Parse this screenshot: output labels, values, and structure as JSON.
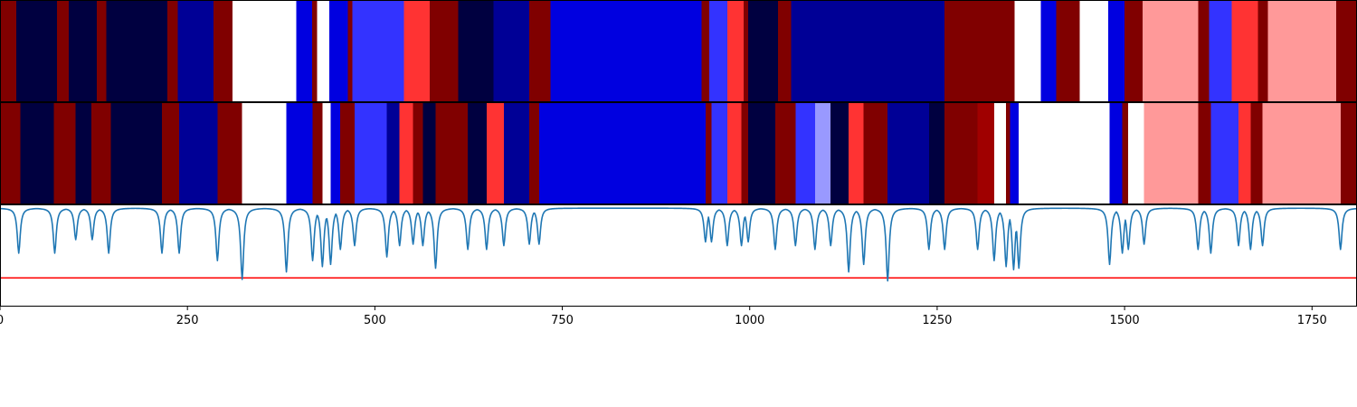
{
  "chart_data": [
    {
      "type": "heatmap",
      "panel": "top-band",
      "colormap": "seismic",
      "xlim": [
        0,
        1810
      ],
      "segments": [
        {
          "x0": 0,
          "x1": 22,
          "color": "#800000"
        },
        {
          "x0": 22,
          "x1": 76,
          "color": "#000040"
        },
        {
          "x0": 76,
          "x1": 92,
          "color": "#800000"
        },
        {
          "x0": 92,
          "x1": 129,
          "color": "#000040"
        },
        {
          "x0": 129,
          "x1": 142,
          "color": "#800000"
        },
        {
          "x0": 142,
          "x1": 223,
          "color": "#000040"
        },
        {
          "x0": 223,
          "x1": 237,
          "color": "#800000"
        },
        {
          "x0": 237,
          "x1": 285,
          "color": "#000096"
        },
        {
          "x0": 285,
          "x1": 310,
          "color": "#800000"
        },
        {
          "x0": 310,
          "x1": 395,
          "color": "#ffffff"
        },
        {
          "x0": 395,
          "x1": 416,
          "color": "#0000e0"
        },
        {
          "x0": 416,
          "x1": 423,
          "color": "#800000"
        },
        {
          "x0": 423,
          "x1": 439,
          "color": "#ffffff"
        },
        {
          "x0": 439,
          "x1": 464,
          "color": "#0000e0"
        },
        {
          "x0": 464,
          "x1": 470,
          "color": "#800000"
        },
        {
          "x0": 470,
          "x1": 539,
          "color": "#3333ff"
        },
        {
          "x0": 539,
          "x1": 573,
          "color": "#ff3333"
        },
        {
          "x0": 573,
          "x1": 611,
          "color": "#800000"
        },
        {
          "x0": 611,
          "x1": 658,
          "color": "#000040"
        },
        {
          "x0": 658,
          "x1": 706,
          "color": "#000096"
        },
        {
          "x0": 706,
          "x1": 734,
          "color": "#800000"
        },
        {
          "x0": 734,
          "x1": 936,
          "color": "#0000e0"
        },
        {
          "x0": 936,
          "x1": 946,
          "color": "#800000"
        },
        {
          "x0": 946,
          "x1": 970,
          "color": "#3333ff"
        },
        {
          "x0": 970,
          "x1": 992,
          "color": "#ff3333"
        },
        {
          "x0": 992,
          "x1": 998,
          "color": "#800000"
        },
        {
          "x0": 998,
          "x1": 1038,
          "color": "#000040"
        },
        {
          "x0": 1038,
          "x1": 1055,
          "color": "#800000"
        },
        {
          "x0": 1055,
          "x1": 1260,
          "color": "#000096"
        },
        {
          "x0": 1260,
          "x1": 1353,
          "color": "#800000"
        },
        {
          "x0": 1353,
          "x1": 1388,
          "color": "#ffffff"
        },
        {
          "x0": 1388,
          "x1": 1409,
          "color": "#0000e0"
        },
        {
          "x0": 1409,
          "x1": 1440,
          "color": "#800000"
        },
        {
          "x0": 1440,
          "x1": 1478,
          "color": "#ffffff"
        },
        {
          "x0": 1478,
          "x1": 1500,
          "color": "#0000e0"
        },
        {
          "x0": 1500,
          "x1": 1524,
          "color": "#800000"
        },
        {
          "x0": 1524,
          "x1": 1598,
          "color": "#ff9999"
        },
        {
          "x0": 1598,
          "x1": 1613,
          "color": "#800000"
        },
        {
          "x0": 1613,
          "x1": 1643,
          "color": "#3333ff"
        },
        {
          "x0": 1643,
          "x1": 1678,
          "color": "#ff3333"
        },
        {
          "x0": 1678,
          "x1": 1691,
          "color": "#800000"
        },
        {
          "x0": 1691,
          "x1": 1782,
          "color": "#ff9999"
        },
        {
          "x0": 1782,
          "x1": 1810,
          "color": "#800000"
        }
      ]
    },
    {
      "type": "heatmap",
      "panel": "middle-band",
      "colormap": "seismic",
      "xlim": [
        0,
        1810
      ],
      "segments": [
        {
          "x0": 0,
          "x1": 27,
          "color": "#800000"
        },
        {
          "x0": 27,
          "x1": 72,
          "color": "#000040"
        },
        {
          "x0": 72,
          "x1": 101,
          "color": "#800000"
        },
        {
          "x0": 101,
          "x1": 122,
          "color": "#000040"
        },
        {
          "x0": 122,
          "x1": 148,
          "color": "#800000"
        },
        {
          "x0": 148,
          "x1": 216,
          "color": "#000040"
        },
        {
          "x0": 216,
          "x1": 239,
          "color": "#800000"
        },
        {
          "x0": 239,
          "x1": 290,
          "color": "#000096"
        },
        {
          "x0": 290,
          "x1": 323,
          "color": "#800000"
        },
        {
          "x0": 323,
          "x1": 382,
          "color": "#ffffff"
        },
        {
          "x0": 382,
          "x1": 417,
          "color": "#0000e0"
        },
        {
          "x0": 417,
          "x1": 430,
          "color": "#800000"
        },
        {
          "x0": 430,
          "x1": 441,
          "color": "#ffffff"
        },
        {
          "x0": 441,
          "x1": 454,
          "color": "#0000e0"
        },
        {
          "x0": 454,
          "x1": 473,
          "color": "#800000"
        },
        {
          "x0": 473,
          "x1": 516,
          "color": "#3333ff"
        },
        {
          "x0": 516,
          "x1": 533,
          "color": "#000096"
        },
        {
          "x0": 533,
          "x1": 551,
          "color": "#ff3333"
        },
        {
          "x0": 551,
          "x1": 564,
          "color": "#800000"
        },
        {
          "x0": 564,
          "x1": 581,
          "color": "#000040"
        },
        {
          "x0": 581,
          "x1": 624,
          "color": "#800000"
        },
        {
          "x0": 624,
          "x1": 649,
          "color": "#000040"
        },
        {
          "x0": 649,
          "x1": 672,
          "color": "#ff3333"
        },
        {
          "x0": 672,
          "x1": 706,
          "color": "#000096"
        },
        {
          "x0": 706,
          "x1": 719,
          "color": "#800000"
        },
        {
          "x0": 719,
          "x1": 941,
          "color": "#0000e0"
        },
        {
          "x0": 941,
          "x1": 949,
          "color": "#800000"
        },
        {
          "x0": 949,
          "x1": 970,
          "color": "#3333ff"
        },
        {
          "x0": 970,
          "x1": 989,
          "color": "#ff3333"
        },
        {
          "x0": 989,
          "x1": 998,
          "color": "#800000"
        },
        {
          "x0": 998,
          "x1": 1034,
          "color": "#000040"
        },
        {
          "x0": 1034,
          "x1": 1061,
          "color": "#800000"
        },
        {
          "x0": 1061,
          "x1": 1087,
          "color": "#3333ff"
        },
        {
          "x0": 1087,
          "x1": 1108,
          "color": "#9999ff"
        },
        {
          "x0": 1108,
          "x1": 1132,
          "color": "#000040"
        },
        {
          "x0": 1132,
          "x1": 1152,
          "color": "#ff3333"
        },
        {
          "x0": 1152,
          "x1": 1184,
          "color": "#800000"
        },
        {
          "x0": 1184,
          "x1": 1239,
          "color": "#000096"
        },
        {
          "x0": 1239,
          "x1": 1260,
          "color": "#000040"
        },
        {
          "x0": 1260,
          "x1": 1304,
          "color": "#800000"
        },
        {
          "x0": 1304,
          "x1": 1326,
          "color": "#a00000"
        },
        {
          "x0": 1326,
          "x1": 1342,
          "color": "#ffffff"
        },
        {
          "x0": 1342,
          "x1": 1347,
          "color": "#800000"
        },
        {
          "x0": 1347,
          "x1": 1359,
          "color": "#0000e0"
        },
        {
          "x0": 1359,
          "x1": 1480,
          "color": "#ffffff"
        },
        {
          "x0": 1480,
          "x1": 1497,
          "color": "#0000e0"
        },
        {
          "x0": 1497,
          "x1": 1505,
          "color": "#800000"
        },
        {
          "x0": 1505,
          "x1": 1526,
          "color": "#ffffff"
        },
        {
          "x0": 1526,
          "x1": 1598,
          "color": "#ff9999"
        },
        {
          "x0": 1598,
          "x1": 1615,
          "color": "#800000"
        },
        {
          "x0": 1615,
          "x1": 1652,
          "color": "#3333ff"
        },
        {
          "x0": 1652,
          "x1": 1668,
          "color": "#ff3333"
        },
        {
          "x0": 1668,
          "x1": 1684,
          "color": "#800000"
        },
        {
          "x0": 1684,
          "x1": 1788,
          "color": "#ff9999"
        },
        {
          "x0": 1788,
          "x1": 1810,
          "color": "#800000"
        }
      ]
    },
    {
      "type": "line",
      "panel": "bottom-line",
      "xlim": [
        0,
        1810
      ],
      "ylim": [
        -1.3,
        0.05
      ],
      "baseline": 0,
      "line_color": "#1f77b4",
      "threshold": {
        "y": -0.93,
        "color": "#ff0000"
      },
      "dips": [
        [
          25,
          -0.6
        ],
        [
          73,
          -0.6
        ],
        [
          101,
          -0.42
        ],
        [
          123,
          -0.42
        ],
        [
          145,
          -0.6
        ],
        [
          216,
          -0.6
        ],
        [
          239,
          -0.6
        ],
        [
          290,
          -0.7
        ],
        [
          323,
          -0.95
        ],
        [
          382,
          -0.85
        ],
        [
          417,
          -0.7
        ],
        [
          430,
          -0.78
        ],
        [
          441,
          -0.75
        ],
        [
          454,
          -0.55
        ],
        [
          473,
          -0.5
        ],
        [
          516,
          -0.65
        ],
        [
          533,
          -0.5
        ],
        [
          551,
          -0.48
        ],
        [
          564,
          -0.5
        ],
        [
          581,
          -0.8
        ],
        [
          624,
          -0.55
        ],
        [
          649,
          -0.55
        ],
        [
          672,
          -0.5
        ],
        [
          706,
          -0.48
        ],
        [
          719,
          -0.48
        ],
        [
          941,
          -0.45
        ],
        [
          949,
          -0.45
        ],
        [
          970,
          -0.5
        ],
        [
          989,
          -0.5
        ],
        [
          998,
          -0.45
        ],
        [
          1034,
          -0.55
        ],
        [
          1061,
          -0.5
        ],
        [
          1087,
          -0.55
        ],
        [
          1108,
          -0.5
        ],
        [
          1132,
          -0.85
        ],
        [
          1152,
          -0.75
        ],
        [
          1184,
          -0.97
        ],
        [
          1239,
          -0.55
        ],
        [
          1260,
          -0.55
        ],
        [
          1304,
          -0.55
        ],
        [
          1326,
          -0.7
        ],
        [
          1342,
          -0.78
        ],
        [
          1352,
          -0.82
        ],
        [
          1359,
          -0.8
        ],
        [
          1480,
          -0.75
        ],
        [
          1497,
          -0.6
        ],
        [
          1505,
          -0.55
        ],
        [
          1526,
          -0.48
        ],
        [
          1598,
          -0.55
        ],
        [
          1615,
          -0.6
        ],
        [
          1652,
          -0.5
        ],
        [
          1668,
          -0.55
        ],
        [
          1684,
          -0.5
        ],
        [
          1788,
          -0.55
        ]
      ],
      "x_ticks": [
        0,
        250,
        500,
        750,
        1000,
        1250,
        1500,
        1750
      ],
      "x_tick_labels": [
        "0",
        "250",
        "500",
        "750",
        "1000",
        "1250",
        "1500",
        "1750"
      ]
    }
  ]
}
